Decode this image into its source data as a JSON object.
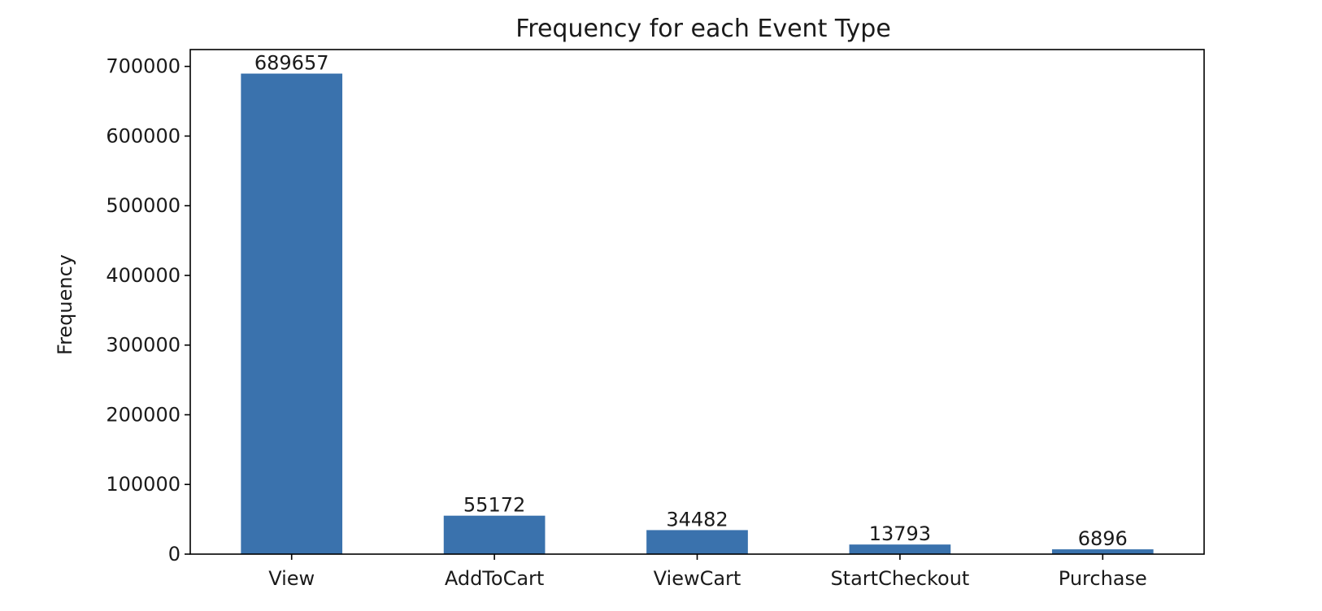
{
  "chart_data": {
    "type": "bar",
    "title": "Frequency for each Event Type",
    "xlabel": "",
    "ylabel": "Frequency",
    "categories": [
      "View",
      "AddToCart",
      "ViewCart",
      "StartCheckout",
      "Purchase"
    ],
    "values": [
      689657,
      55172,
      34482,
      13793,
      6896
    ],
    "data_labels": [
      "689657",
      "55172",
      "34482",
      "13793",
      "6896"
    ],
    "ylim": [
      0,
      724140
    ],
    "yticks": [
      0,
      100000,
      200000,
      300000,
      400000,
      500000,
      600000,
      700000
    ],
    "ytick_labels": [
      "0",
      "100000",
      "200000",
      "300000",
      "400000",
      "500000",
      "600000",
      "700000"
    ],
    "bar_color": "#3a72ad",
    "grid": false,
    "legend": "none"
  }
}
